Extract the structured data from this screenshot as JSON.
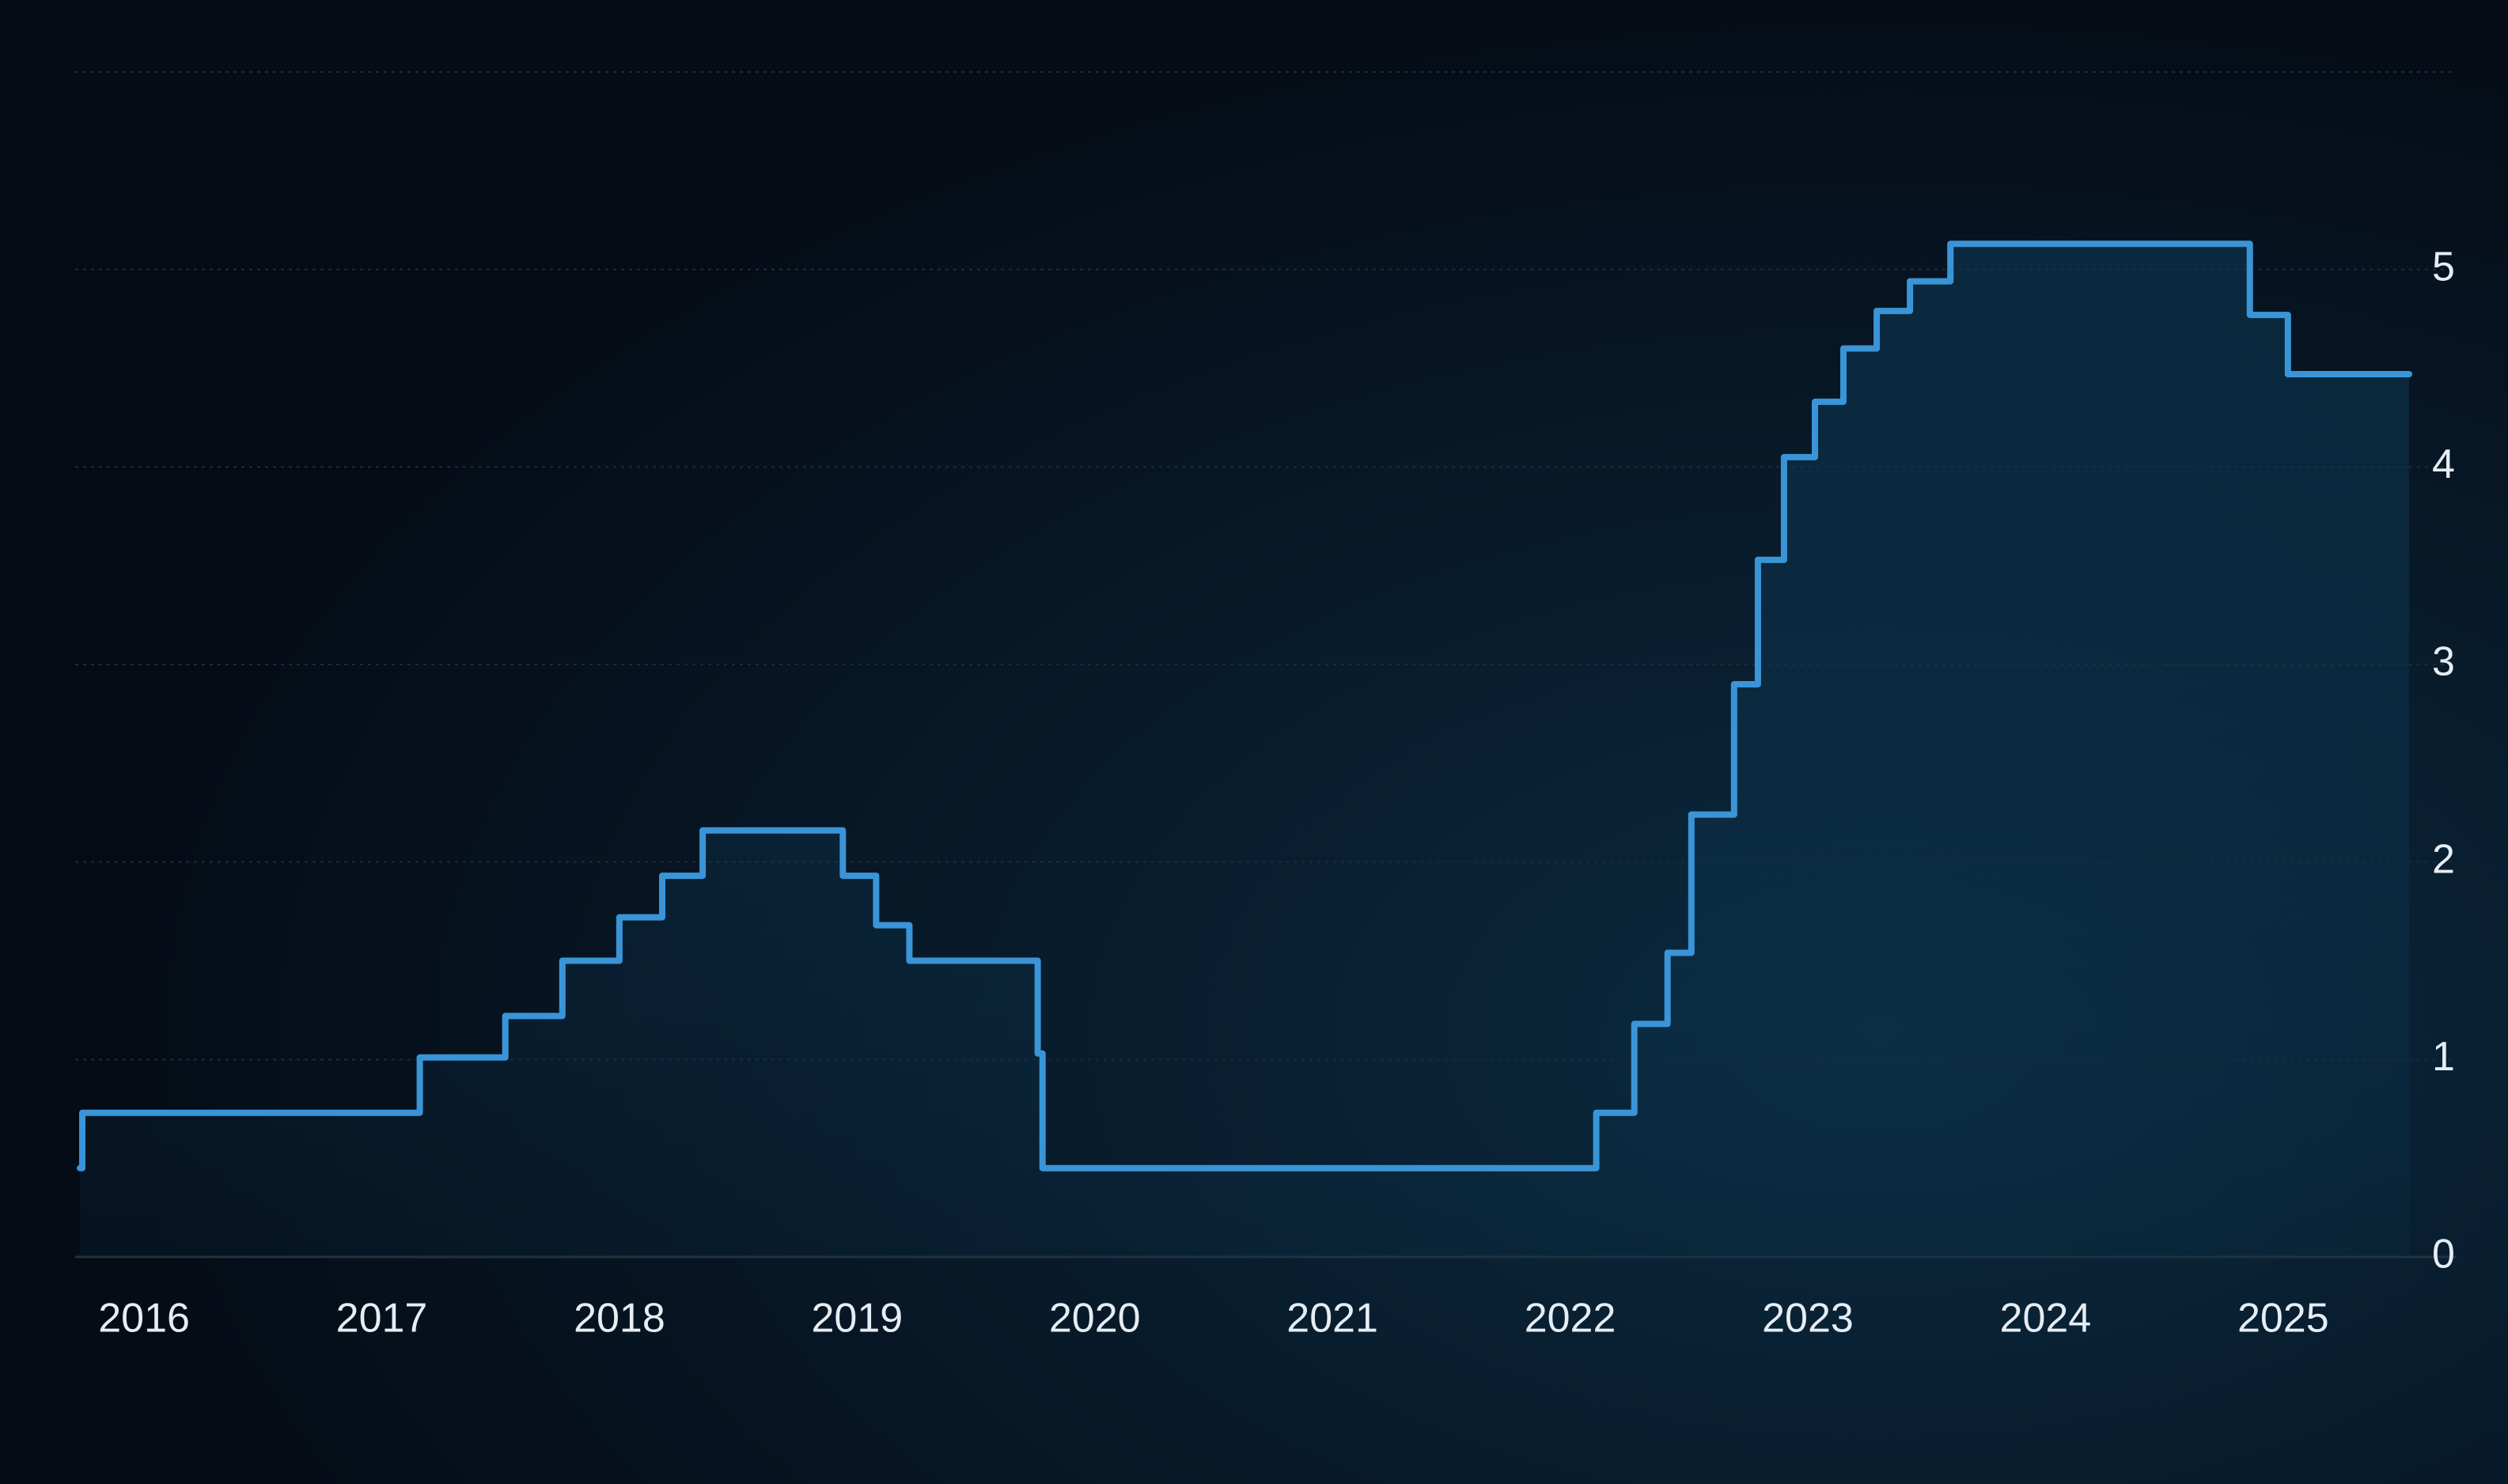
{
  "chart_data": {
    "type": "line",
    "x": [
      2015.73,
      2015.74,
      2015.74,
      2017.16,
      2017.16,
      2017.52,
      2017.52,
      2017.76,
      2017.76,
      2018.0,
      2018.0,
      2018.18,
      2018.18,
      2018.35,
      2018.35,
      2018.94,
      2018.94,
      2019.08,
      2019.08,
      2019.22,
      2019.22,
      2019.76,
      2019.76,
      2019.78,
      2019.78,
      2022.11,
      2022.11,
      2022.27,
      2022.27,
      2022.41,
      2022.41,
      2022.51,
      2022.51,
      2022.69,
      2022.69,
      2022.79,
      2022.79,
      2022.9,
      2022.9,
      2023.03,
      2023.03,
      2023.15,
      2023.15,
      2023.29,
      2023.29,
      2023.43,
      2023.43,
      2023.6,
      2023.6,
      2024.86,
      2024.86,
      2025.02,
      2025.02,
      2025.53
    ],
    "series": [
      {
        "color": "#3a95d8",
        "values": [
          0.45,
          0.45,
          0.73,
          0.73,
          1.01,
          1.01,
          1.22,
          1.22,
          1.5,
          1.5,
          1.72,
          1.72,
          1.93,
          1.93,
          2.16,
          2.16,
          1.93,
          1.93,
          1.68,
          1.68,
          1.5,
          1.5,
          1.03,
          1.03,
          0.45,
          0.45,
          0.73,
          0.73,
          1.18,
          1.18,
          1.54,
          1.54,
          2.24,
          2.24,
          2.9,
          2.9,
          3.53,
          3.53,
          4.05,
          4.05,
          4.33,
          4.33,
          4.6,
          4.6,
          4.79,
          4.79,
          4.94,
          4.94,
          5.13,
          5.13,
          4.77,
          4.77,
          4.47,
          4.47
        ]
      }
    ],
    "xlim": [
      2015.73,
      2025.53
    ],
    "xticks": [
      2016,
      2017,
      2018,
      2019,
      2020,
      2021,
      2022,
      2023,
      2024,
      2025
    ],
    "ylim": [
      0,
      6
    ],
    "yticks": [
      0,
      1,
      2,
      3,
      4,
      5
    ],
    "grid": true
  }
}
